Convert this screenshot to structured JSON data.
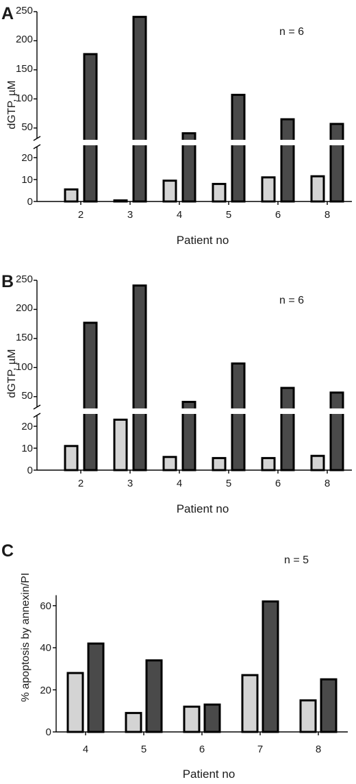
{
  "colors": {
    "light_bar": "#d4d4d4",
    "dark_bar": "#4a4a4a",
    "outline": "#000000"
  },
  "chart_data": [
    {
      "type": "bar",
      "panel_label": "A",
      "annotation": "n = 6",
      "xlabel": "Patient no",
      "ylabel": "dGTP, µM",
      "categories": [
        "2",
        "3",
        "4",
        "5",
        "6",
        "8"
      ],
      "series": [
        {
          "values": [
            5.5,
            0.5,
            9.5,
            8,
            11,
            11.5
          ]
        },
        {
          "values": [
            177,
            241,
            41,
            107,
            65,
            57
          ]
        }
      ],
      "y_axis_break": {
        "lower_range": [
          0,
          25
        ],
        "upper_range": [
          25,
          250
        ]
      },
      "yticks": [
        0,
        10,
        20,
        50,
        100,
        150,
        200,
        250
      ],
      "grid": false,
      "annotation_position": "top-right"
    },
    {
      "type": "bar",
      "panel_label": "B",
      "annotation": "n = 6",
      "xlabel": "Patient no",
      "ylabel": "dGTP, µM",
      "categories": [
        "2",
        "3",
        "4",
        "5",
        "6",
        "8"
      ],
      "series": [
        {
          "values": [
            11,
            23,
            6,
            5.5,
            5.5,
            6.5
          ]
        },
        {
          "values": [
            177,
            241,
            41,
            107,
            65,
            57
          ]
        }
      ],
      "y_axis_break": {
        "lower_range": [
          0,
          25
        ],
        "upper_range": [
          25,
          250
        ]
      },
      "yticks": [
        0,
        10,
        20,
        50,
        100,
        150,
        200,
        250
      ],
      "grid": false,
      "annotation_position": "top-right"
    },
    {
      "type": "bar",
      "panel_label": "C",
      "annotation": "n = 5",
      "xlabel": "Patient no",
      "ylabel": "% apoptosis by annexin/PI",
      "categories": [
        "4",
        "5",
        "6",
        "7",
        "8"
      ],
      "series": [
        {
          "values": [
            28,
            9,
            12,
            27,
            15
          ]
        },
        {
          "values": [
            42,
            34,
            13,
            62,
            25
          ]
        }
      ],
      "ylim": [
        0,
        65
      ],
      "yticks": [
        0,
        20,
        40,
        60
      ],
      "grid": false,
      "annotation_position": "top-right"
    }
  ]
}
